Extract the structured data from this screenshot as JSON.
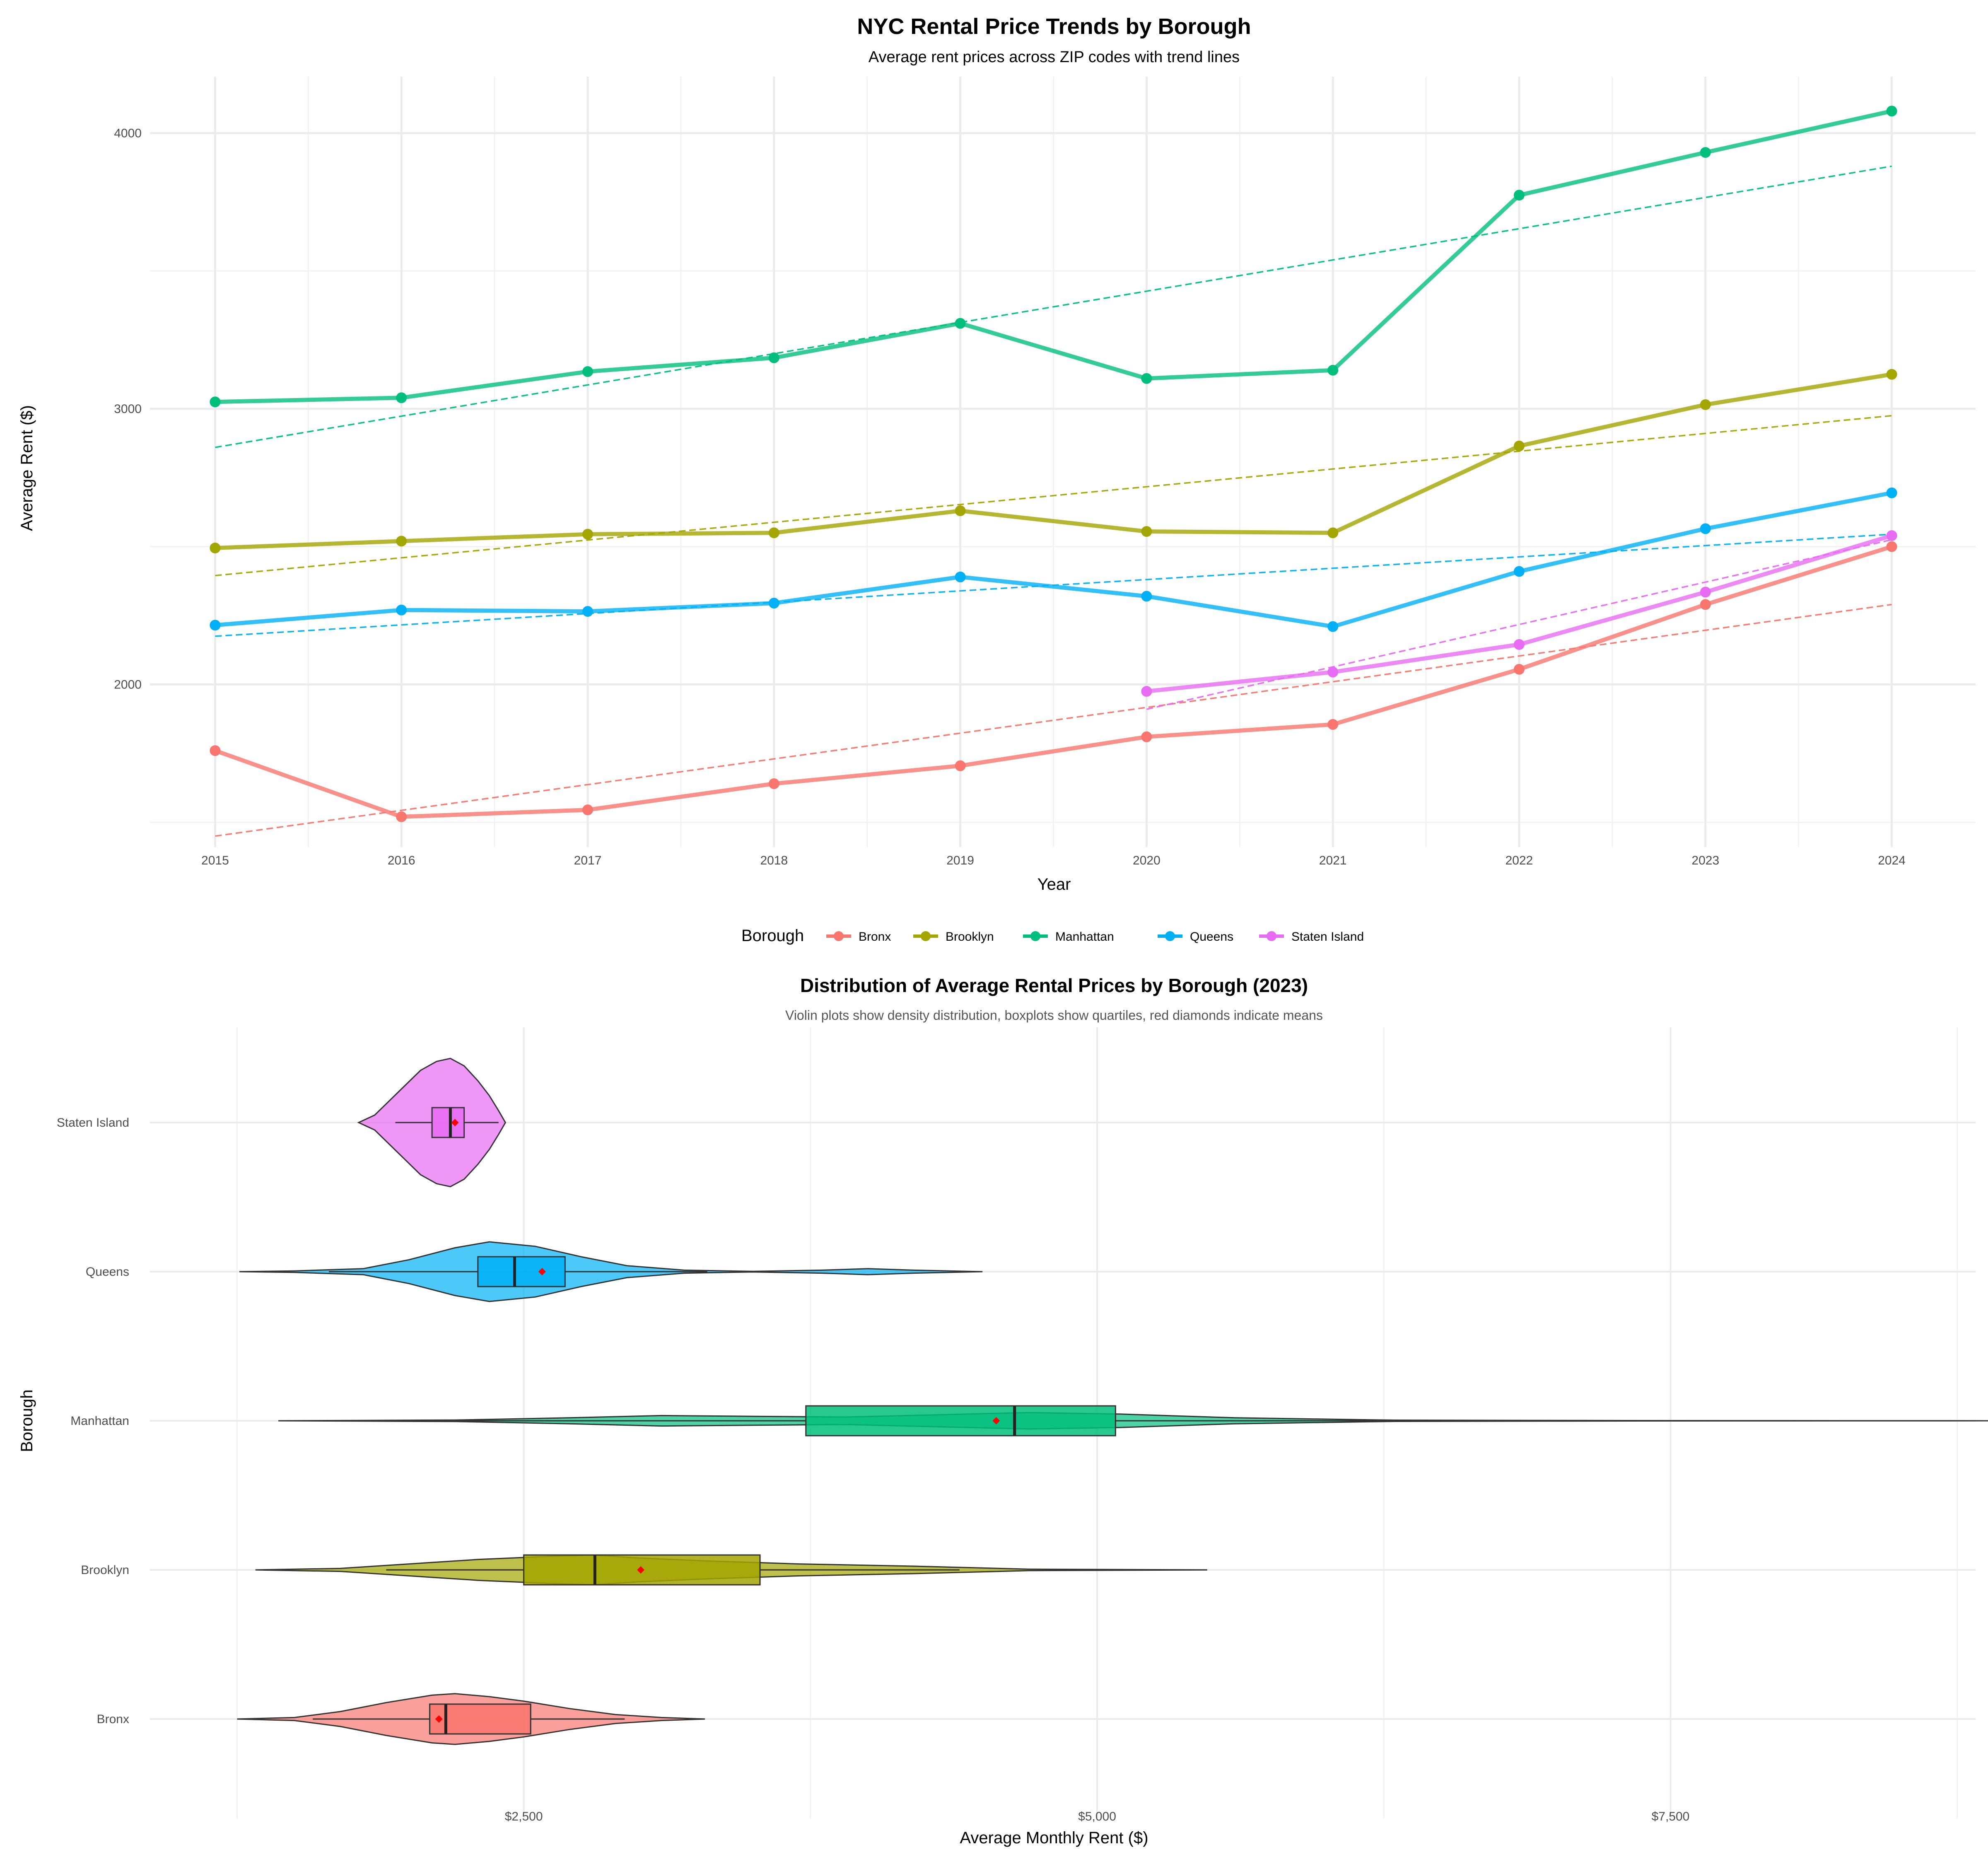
{
  "colors": {
    "Bronx": "#F8766D",
    "Brooklyn": "#A3A500",
    "Manhattan": "#00BF7D",
    "Queens": "#00B0F6",
    "Staten Island": "#E76BF3",
    "mean_marker": "#FF0000"
  },
  "legend": {
    "title": "Borough",
    "items": [
      "Bronx",
      "Brooklyn",
      "Manhattan",
      "Queens",
      "Staten Island"
    ]
  },
  "chart_data": [
    {
      "type": "line",
      "title": "NYC Rental Price Trends by Borough",
      "subtitle": "Average rent prices across ZIP codes with trend lines",
      "xlabel": "Year",
      "ylabel": "Average Rent ($)",
      "x": [
        2015,
        2016,
        2017,
        2018,
        2019,
        2020,
        2021,
        2022,
        2023,
        2024
      ],
      "xlim": [
        2014.65,
        2024.45
      ],
      "ylim": [
        1410,
        4205
      ],
      "yticks": [
        2000,
        3000,
        4000
      ],
      "grid": true,
      "series": [
        {
          "name": "Bronx",
          "x": [
            2015,
            2016,
            2017,
            2018,
            2019,
            2020,
            2021,
            2022,
            2023,
            2024
          ],
          "values": [
            1760,
            1520,
            1545,
            1640,
            1705,
            1810,
            1855,
            2055,
            2290,
            2500
          ],
          "trend": [
            1450,
            2290
          ]
        },
        {
          "name": "Brooklyn",
          "x": [
            2015,
            2016,
            2017,
            2018,
            2019,
            2020,
            2021,
            2022,
            2023,
            2024
          ],
          "values": [
            2495,
            2520,
            2545,
            2550,
            2630,
            2555,
            2550,
            2865,
            3015,
            3125
          ],
          "trend": [
            2395,
            2975
          ]
        },
        {
          "name": "Manhattan",
          "x": [
            2015,
            2016,
            2017,
            2018,
            2019,
            2020,
            2021,
            2022,
            2023,
            2024
          ],
          "values": [
            3025,
            3040,
            3135,
            3185,
            3310,
            3110,
            3140,
            3775,
            3930,
            4080
          ],
          "trend": [
            2860,
            3880
          ]
        },
        {
          "name": "Queens",
          "x": [
            2015,
            2016,
            2017,
            2018,
            2019,
            2020,
            2021,
            2022,
            2023,
            2024
          ],
          "values": [
            2215,
            2270,
            2265,
            2295,
            2390,
            2320,
            2210,
            2410,
            2565,
            2695
          ],
          "trend": [
            2175,
            2545
          ]
        },
        {
          "name": "Staten Island",
          "x": [
            2020,
            2021,
            2022,
            2023,
            2024
          ],
          "values": [
            1975,
            2045,
            2145,
            2335,
            2540
          ],
          "trend": [
            1910,
            2525
          ]
        }
      ]
    },
    {
      "type": "violin",
      "title": "Distribution of Average Rental Prices by Borough (2023)",
      "subtitle": "Violin plots show density distribution, boxplots show quartiles, red diamonds indicate means",
      "xlabel": "Average Monthly Rent ($)",
      "ylabel": "Borough",
      "xlim": [
        870,
        8830
      ],
      "xticks": [
        2500,
        5000,
        7500
      ],
      "xtick_labels": [
        "$2,500",
        "$5,000",
        "$7,500"
      ],
      "categories": [
        "Bronx",
        "Brooklyn",
        "Manhattan",
        "Queens",
        "Staten Island"
      ],
      "series": [
        {
          "name": "Bronx",
          "min": 1250,
          "q1": 2090,
          "median": 2160,
          "q3": 2530,
          "max": 3290,
          "mean": 2130,
          "whisker_low": 1580,
          "whisker_high": 2940,
          "peak_halfwidth": 0.17,
          "density": [
            [
              1250,
              0.0
            ],
            [
              1500,
              0.01
            ],
            [
              1700,
              0.05
            ],
            [
              1900,
              0.11
            ],
            [
              2100,
              0.16
            ],
            [
              2200,
              0.17
            ],
            [
              2350,
              0.15
            ],
            [
              2500,
              0.12
            ],
            [
              2700,
              0.07
            ],
            [
              2900,
              0.03
            ],
            [
              3100,
              0.01
            ],
            [
              3290,
              0.0
            ]
          ]
        },
        {
          "name": "Brooklyn",
          "min": 1330,
          "q1": 2500,
          "median": 2810,
          "q3": 3530,
          "max": 5480,
          "mean": 3010,
          "whisker_low": 1900,
          "whisker_high": 4400,
          "peak_halfwidth": 0.1,
          "density": [
            [
              1330,
              0.0
            ],
            [
              1700,
              0.01
            ],
            [
              2000,
              0.04
            ],
            [
              2300,
              0.07
            ],
            [
              2600,
              0.09
            ],
            [
              2800,
              0.1
            ],
            [
              3000,
              0.08
            ],
            [
              3300,
              0.06
            ],
            [
              3700,
              0.04
            ],
            [
              4200,
              0.025
            ],
            [
              4700,
              0.005
            ],
            [
              5480,
              0.0
            ]
          ]
        },
        {
          "name": "Manhattan",
          "min": 1430,
          "q1": 3730,
          "median": 4640,
          "q3": 5080,
          "max": 9000,
          "mean": 4560,
          "whisker_low": 1430,
          "whisker_high": 9000,
          "peak_halfwidth": 0.055,
          "density": [
            [
              1430,
              0.0
            ],
            [
              2200,
              0.005
            ],
            [
              2700,
              0.02
            ],
            [
              3100,
              0.035
            ],
            [
              3500,
              0.03
            ],
            [
              3900,
              0.025
            ],
            [
              4300,
              0.04
            ],
            [
              4700,
              0.055
            ],
            [
              5100,
              0.045
            ],
            [
              5600,
              0.02
            ],
            [
              6300,
              0.004
            ],
            [
              7500,
              0.001
            ],
            [
              9000,
              0.0
            ]
          ]
        },
        {
          "name": "Queens",
          "min": 1260,
          "q1": 2300,
          "median": 2460,
          "q3": 2680,
          "max": 4500,
          "mean": 2580,
          "whisker_low": 1650,
          "whisker_high": 3300,
          "peak_halfwidth": 0.2,
          "density": [
            [
              1260,
              0.0
            ],
            [
              1500,
              0.005
            ],
            [
              1800,
              0.02
            ],
            [
              2000,
              0.08
            ],
            [
              2200,
              0.16
            ],
            [
              2350,
              0.2
            ],
            [
              2550,
              0.17
            ],
            [
              2750,
              0.1
            ],
            [
              2950,
              0.04
            ],
            [
              3200,
              0.01
            ],
            [
              3500,
              0.002
            ],
            [
              3800,
              0.01
            ],
            [
              4000,
              0.02
            ],
            [
              4200,
              0.01
            ],
            [
              4500,
              0.0
            ]
          ]
        },
        {
          "name": "Staten Island",
          "min": 1780,
          "q1": 2100,
          "median": 2180,
          "q3": 2240,
          "max": 2420,
          "mean": 2200,
          "whisker_low": 1940,
          "whisker_high": 2390,
          "peak_halfwidth": 0.43,
          "density": [
            [
              1780,
              0.0
            ],
            [
              1850,
              0.05
            ],
            [
              1950,
              0.2
            ],
            [
              2050,
              0.35
            ],
            [
              2120,
              0.41
            ],
            [
              2180,
              0.43
            ],
            [
              2240,
              0.38
            ],
            [
              2300,
              0.28
            ],
            [
              2350,
              0.18
            ],
            [
              2390,
              0.08
            ],
            [
              2420,
              0.0
            ]
          ]
        }
      ]
    }
  ]
}
